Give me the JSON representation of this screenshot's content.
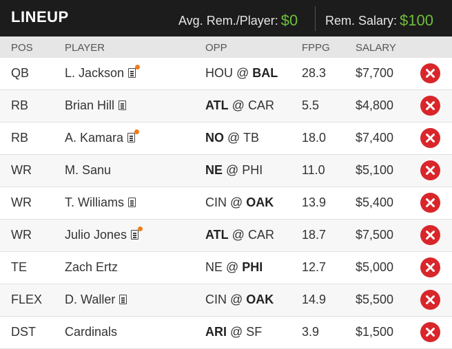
{
  "header": {
    "title": "LINEUP",
    "avg_label": "Avg. Rem./Player:",
    "avg_value": "$0",
    "rem_label": "Rem. Salary:",
    "rem_value": "$100"
  },
  "columns": {
    "pos": "POS",
    "player": "PLAYER",
    "opp": "OPP",
    "fppg": "FPPG",
    "salary": "SALARY"
  },
  "rows": [
    {
      "pos": "QB",
      "player": "L. Jackson",
      "news_alert": true,
      "away": "HOU",
      "at": " @ ",
      "home": "BAL",
      "bold": "home",
      "fppg": "28.3",
      "salary": "$7,700"
    },
    {
      "pos": "RB",
      "player": "Brian Hill",
      "news_alert": false,
      "away": "ATL",
      "at": " @ ",
      "home": "CAR",
      "bold": "away",
      "fppg": "5.5",
      "salary": "$4,800"
    },
    {
      "pos": "RB",
      "player": "A. Kamara",
      "news_alert": true,
      "away": "NO",
      "at": " @ ",
      "home": "TB",
      "bold": "away",
      "fppg": "18.0",
      "salary": "$7,400"
    },
    {
      "pos": "WR",
      "player": "M. Sanu",
      "news_alert": false,
      "no_news": true,
      "away": "NE",
      "at": " @ ",
      "home": "PHI",
      "bold": "away",
      "fppg": "11.0",
      "salary": "$5,100"
    },
    {
      "pos": "WR",
      "player": "T. Williams",
      "news_alert": false,
      "away": "CIN",
      "at": " @ ",
      "home": "OAK",
      "bold": "home",
      "fppg": "13.9",
      "salary": "$5,400"
    },
    {
      "pos": "WR",
      "player": "Julio Jones",
      "news_alert": true,
      "away": "ATL",
      "at": " @ ",
      "home": "CAR",
      "bold": "away",
      "fppg": "18.7",
      "salary": "$7,500"
    },
    {
      "pos": "TE",
      "player": "Zach Ertz",
      "news_alert": false,
      "no_news": true,
      "away": "NE",
      "at": " @ ",
      "home": "PHI",
      "bold": "home",
      "fppg": "12.7",
      "salary": "$5,000"
    },
    {
      "pos": "FLEX",
      "player": "D. Waller",
      "news_alert": false,
      "away": "CIN",
      "at": " @ ",
      "home": "OAK",
      "bold": "home",
      "fppg": "14.9",
      "salary": "$5,500"
    },
    {
      "pos": "DST",
      "player": "Cardinals",
      "news_alert": false,
      "no_news": true,
      "away": "ARI",
      "at": " @ ",
      "home": "SF",
      "bold": "away",
      "fppg": "3.9",
      "salary": "$1,500"
    }
  ],
  "colors": {
    "accent_green": "#6fbf3b",
    "remove_red": "#d9262a",
    "alert_orange": "#f07c1a"
  },
  "icons": {
    "news": "news-icon",
    "remove": "remove-icon"
  }
}
